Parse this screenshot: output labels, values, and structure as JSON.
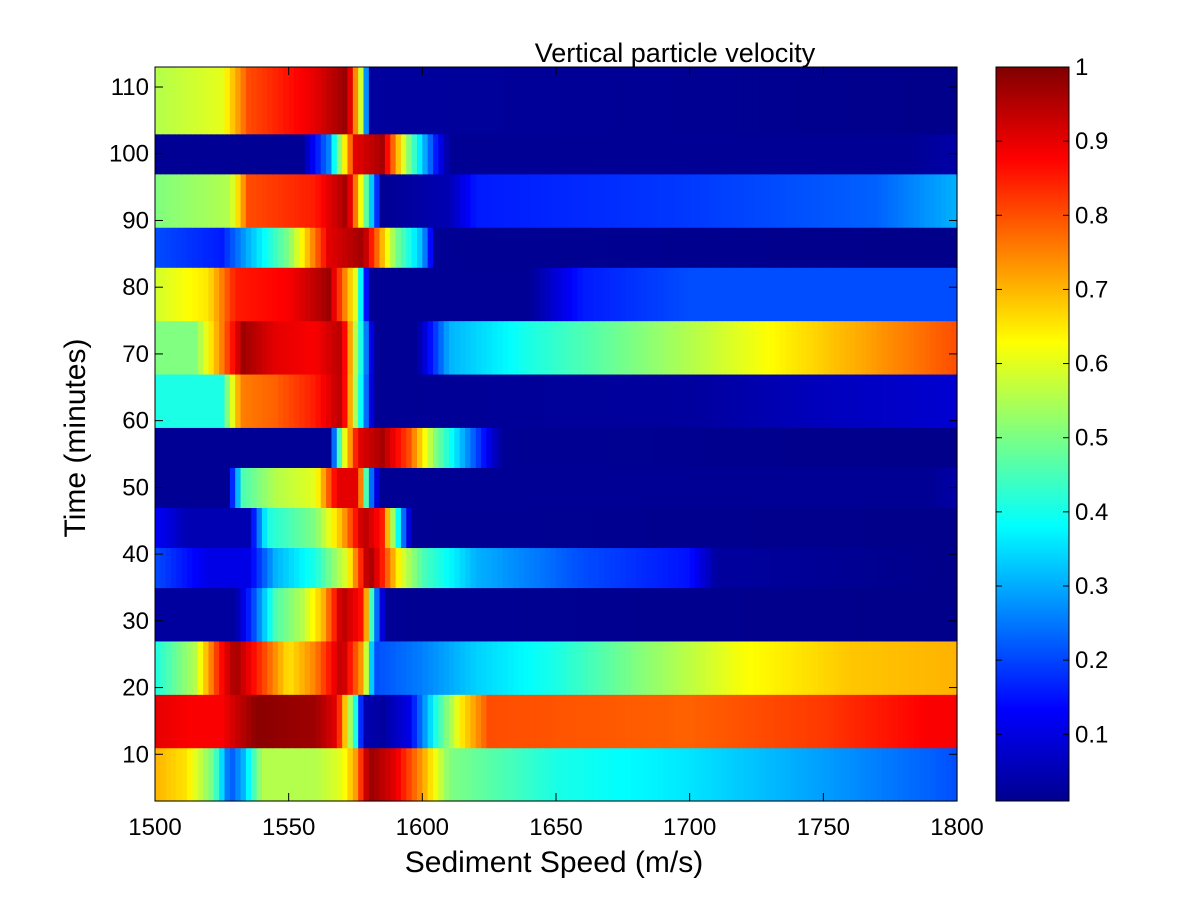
{
  "chart_data": {
    "type": "heatmap",
    "title": "Vertical particle velocity",
    "xlabel": "Sediment Speed (m/s)",
    "ylabel": "Time (minutes)",
    "xlim": [
      1500,
      1800
    ],
    "ylim": [
      3,
      113
    ],
    "xticks": [
      1500,
      1550,
      1600,
      1650,
      1700,
      1750,
      1800
    ],
    "yticks": [
      10,
      20,
      30,
      40,
      50,
      60,
      70,
      80,
      90,
      100,
      110
    ],
    "colormap": "jet",
    "colorbar": {
      "range": [
        0.01,
        1
      ],
      "ticks": [
        0.1,
        0.2,
        0.3,
        0.4,
        0.5,
        0.6,
        0.7,
        0.8,
        0.9,
        1
      ]
    },
    "rows": [
      {
        "y": [
          3,
          11
        ],
        "profile": [
          [
            1500,
            0.7
          ],
          [
            1512,
            0.65
          ],
          [
            1522,
            0.48
          ],
          [
            1528,
            0.2
          ],
          [
            1533,
            0.3
          ],
          [
            1540,
            0.55
          ],
          [
            1560,
            0.55
          ],
          [
            1570,
            0.6
          ],
          [
            1575,
            0.72
          ],
          [
            1580,
            0.98
          ],
          [
            1590,
            0.9
          ],
          [
            1600,
            0.72
          ],
          [
            1610,
            0.5
          ],
          [
            1650,
            0.4
          ],
          [
            1700,
            0.35
          ],
          [
            1750,
            0.28
          ],
          [
            1790,
            0.22
          ],
          [
            1800,
            0.2
          ]
        ]
      },
      {
        "y": [
          11,
          19
        ],
        "profile": [
          [
            1500,
            0.9
          ],
          [
            1512,
            0.88
          ],
          [
            1525,
            0.88
          ],
          [
            1538,
            0.99
          ],
          [
            1560,
            0.97
          ],
          [
            1568,
            0.9
          ],
          [
            1575,
            0.4
          ],
          [
            1578,
            0.05
          ],
          [
            1585,
            0.03
          ],
          [
            1595,
            0.1
          ],
          [
            1605,
            0.4
          ],
          [
            1615,
            0.65
          ],
          [
            1625,
            0.8
          ],
          [
            1700,
            0.78
          ],
          [
            1750,
            0.82
          ],
          [
            1790,
            0.88
          ],
          [
            1800,
            0.88
          ]
        ]
      },
      {
        "y": [
          19,
          27
        ],
        "profile": [
          [
            1500,
            0.4
          ],
          [
            1515,
            0.55
          ],
          [
            1524,
            0.85
          ],
          [
            1530,
            0.97
          ],
          [
            1540,
            0.82
          ],
          [
            1550,
            0.65
          ],
          [
            1560,
            0.75
          ],
          [
            1570,
            0.95
          ],
          [
            1578,
            0.7
          ],
          [
            1582,
            0.2
          ],
          [
            1600,
            0.25
          ],
          [
            1620,
            0.33
          ],
          [
            1650,
            0.4
          ],
          [
            1680,
            0.5
          ],
          [
            1720,
            0.62
          ],
          [
            1760,
            0.68
          ],
          [
            1800,
            0.7
          ]
        ]
      },
      {
        "y": [
          27,
          35
        ],
        "profile": [
          [
            1500,
            0.03
          ],
          [
            1530,
            0.03
          ],
          [
            1537,
            0.2
          ],
          [
            1545,
            0.45
          ],
          [
            1555,
            0.55
          ],
          [
            1563,
            0.7
          ],
          [
            1570,
            0.95
          ],
          [
            1578,
            0.85
          ],
          [
            1582,
            0.3
          ],
          [
            1586,
            0.02
          ],
          [
            1800,
            0.01
          ]
        ]
      },
      {
        "y": [
          35,
          41
        ],
        "profile": [
          [
            1500,
            0.2
          ],
          [
            1520,
            0.1
          ],
          [
            1535,
            0.1
          ],
          [
            1545,
            0.3
          ],
          [
            1560,
            0.4
          ],
          [
            1572,
            0.6
          ],
          [
            1580,
            0.98
          ],
          [
            1585,
            0.85
          ],
          [
            1592,
            0.6
          ],
          [
            1600,
            0.45
          ],
          [
            1620,
            0.3
          ],
          [
            1660,
            0.2
          ],
          [
            1700,
            0.14
          ],
          [
            1710,
            0.03
          ],
          [
            1800,
            0.01
          ]
        ]
      },
      {
        "y": [
          41,
          47
        ],
        "profile": [
          [
            1500,
            0.12
          ],
          [
            1512,
            0.05
          ],
          [
            1535,
            0.05
          ],
          [
            1542,
            0.4
          ],
          [
            1560,
            0.5
          ],
          [
            1570,
            0.7
          ],
          [
            1578,
            0.95
          ],
          [
            1585,
            0.85
          ],
          [
            1592,
            0.3
          ],
          [
            1596,
            0.02
          ],
          [
            1800,
            0.01
          ]
        ]
      },
      {
        "y": [
          47,
          53
        ],
        "profile": [
          [
            1500,
            0.02
          ],
          [
            1527,
            0.02
          ],
          [
            1533,
            0.45
          ],
          [
            1545,
            0.55
          ],
          [
            1560,
            0.6
          ],
          [
            1568,
            0.9
          ],
          [
            1576,
            0.9
          ],
          [
            1580,
            0.3
          ],
          [
            1584,
            0.02
          ],
          [
            1790,
            0.02
          ],
          [
            1800,
            0.04
          ]
        ]
      },
      {
        "y": [
          53,
          59
        ],
        "profile": [
          [
            1500,
            0.02
          ],
          [
            1565,
            0.02
          ],
          [
            1570,
            0.55
          ],
          [
            1576,
            0.9
          ],
          [
            1585,
            0.96
          ],
          [
            1595,
            0.8
          ],
          [
            1605,
            0.5
          ],
          [
            1615,
            0.3
          ],
          [
            1625,
            0.1
          ],
          [
            1630,
            0.02
          ],
          [
            1800,
            0.01
          ]
        ]
      },
      {
        "y": [
          59,
          67
        ],
        "profile": [
          [
            1500,
            0.4
          ],
          [
            1525,
            0.4
          ],
          [
            1532,
            0.75
          ],
          [
            1545,
            0.78
          ],
          [
            1560,
            0.85
          ],
          [
            1570,
            0.95
          ],
          [
            1578,
            0.3
          ],
          [
            1582,
            0.02
          ],
          [
            1700,
            0.03
          ],
          [
            1750,
            0.06
          ],
          [
            1800,
            0.08
          ]
        ]
      },
      {
        "y": [
          67,
          75
        ],
        "profile": [
          [
            1500,
            0.5
          ],
          [
            1515,
            0.5
          ],
          [
            1525,
            0.75
          ],
          [
            1533,
            0.97
          ],
          [
            1545,
            0.9
          ],
          [
            1560,
            0.88
          ],
          [
            1570,
            0.95
          ],
          [
            1577,
            0.4
          ],
          [
            1582,
            0.02
          ],
          [
            1598,
            0.02
          ],
          [
            1610,
            0.3
          ],
          [
            1640,
            0.4
          ],
          [
            1680,
            0.5
          ],
          [
            1720,
            0.6
          ],
          [
            1760,
            0.7
          ],
          [
            1800,
            0.8
          ]
        ]
      },
      {
        "y": [
          75,
          83
        ],
        "profile": [
          [
            1500,
            0.58
          ],
          [
            1520,
            0.65
          ],
          [
            1530,
            0.85
          ],
          [
            1550,
            0.88
          ],
          [
            1565,
            0.97
          ],
          [
            1575,
            0.6
          ],
          [
            1580,
            0.02
          ],
          [
            1640,
            0.02
          ],
          [
            1660,
            0.15
          ],
          [
            1700,
            0.2
          ],
          [
            1800,
            0.2
          ]
        ]
      },
      {
        "y": [
          83,
          89
        ],
        "profile": [
          [
            1500,
            0.2
          ],
          [
            1525,
            0.15
          ],
          [
            1535,
            0.3
          ],
          [
            1550,
            0.5
          ],
          [
            1565,
            0.9
          ],
          [
            1578,
            0.97
          ],
          [
            1590,
            0.5
          ],
          [
            1600,
            0.3
          ],
          [
            1605,
            0.02
          ],
          [
            1800,
            0.01
          ]
        ]
      },
      {
        "y": [
          89,
          97
        ],
        "profile": [
          [
            1500,
            0.5
          ],
          [
            1528,
            0.55
          ],
          [
            1535,
            0.8
          ],
          [
            1560,
            0.85
          ],
          [
            1572,
            0.97
          ],
          [
            1580,
            0.4
          ],
          [
            1585,
            0.02
          ],
          [
            1610,
            0.05
          ],
          [
            1620,
            0.15
          ],
          [
            1700,
            0.18
          ],
          [
            1770,
            0.22
          ],
          [
            1800,
            0.3
          ]
        ]
      },
      {
        "y": [
          97,
          103
        ],
        "profile": [
          [
            1500,
            0.02
          ],
          [
            1555,
            0.02
          ],
          [
            1565,
            0.25
          ],
          [
            1575,
            0.9
          ],
          [
            1585,
            0.96
          ],
          [
            1595,
            0.5
          ],
          [
            1605,
            0.15
          ],
          [
            1610,
            0.02
          ],
          [
            1780,
            0.02
          ],
          [
            1800,
            0.04
          ]
        ]
      },
      {
        "y": [
          103,
          113
        ],
        "profile": [
          [
            1500,
            0.55
          ],
          [
            1525,
            0.6
          ],
          [
            1535,
            0.8
          ],
          [
            1560,
            0.9
          ],
          [
            1572,
            0.98
          ],
          [
            1578,
            0.5
          ],
          [
            1580,
            0.03
          ],
          [
            1800,
            0.01
          ]
        ]
      }
    ]
  }
}
